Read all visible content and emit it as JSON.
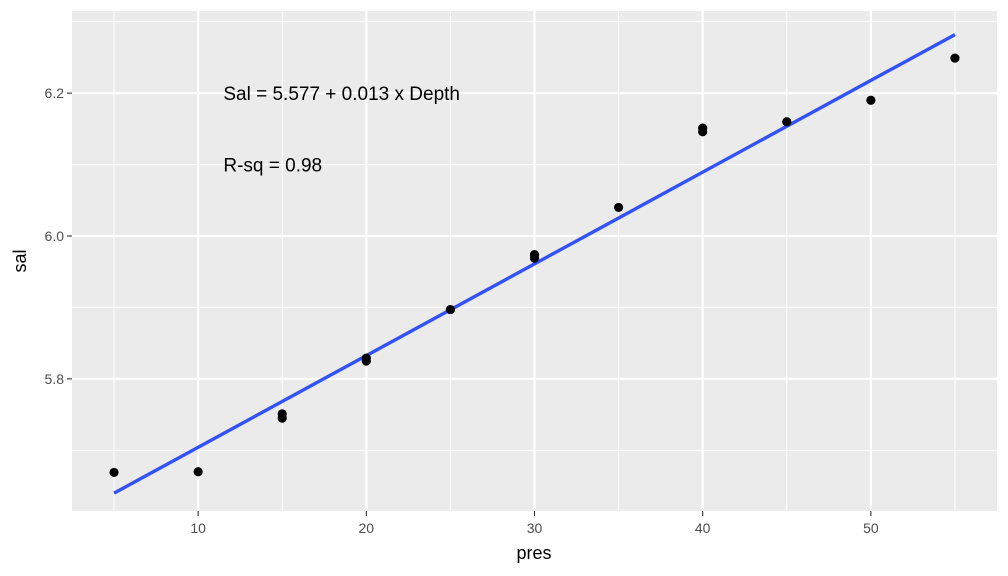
{
  "chart_data": {
    "type": "scatter",
    "xlabel": "pres",
    "ylabel": "sal",
    "xlim": [
      2.5,
      57.5
    ],
    "ylim": [
      5.615,
      6.315
    ],
    "x_ticks": [
      10,
      20,
      30,
      40,
      50
    ],
    "x_minor_ticks": [
      5,
      15,
      25,
      35,
      45,
      55
    ],
    "y_ticks": [
      5.8,
      6.0,
      6.2
    ],
    "y_tick_labels": [
      "5.8",
      "6.0",
      "6.2"
    ],
    "y_minor_ticks": [
      5.7,
      5.9,
      6.1,
      6.3
    ],
    "grid": true,
    "points": [
      {
        "x": 5,
        "y": 5.669
      },
      {
        "x": 10,
        "y": 5.67
      },
      {
        "x": 15,
        "y": 5.745
      },
      {
        "x": 15,
        "y": 5.751
      },
      {
        "x": 20,
        "y": 5.825
      },
      {
        "x": 20,
        "y": 5.829
      },
      {
        "x": 25,
        "y": 5.897
      },
      {
        "x": 30,
        "y": 5.969
      },
      {
        "x": 30,
        "y": 5.974
      },
      {
        "x": 35,
        "y": 6.04
      },
      {
        "x": 40,
        "y": 6.146
      },
      {
        "x": 40,
        "y": 6.151
      },
      {
        "x": 45,
        "y": 6.16
      },
      {
        "x": 50,
        "y": 6.19
      },
      {
        "x": 55,
        "y": 6.249
      }
    ],
    "fit_line": {
      "x": [
        5,
        55
      ],
      "y": [
        5.64,
        6.282
      ],
      "color": "#3352FF"
    },
    "annotations": [
      {
        "text": "Sal = 5.577  +  0.013 x Depth",
        "x": 11.5,
        "y": 6.2
      },
      {
        "text": "R-sq = 0.98",
        "x": 11.5,
        "y": 6.1
      }
    ],
    "colors": {
      "panel": "#EBEBEB",
      "grid": "#FFFFFF",
      "points": "#000000",
      "line": "#3352FF"
    }
  }
}
